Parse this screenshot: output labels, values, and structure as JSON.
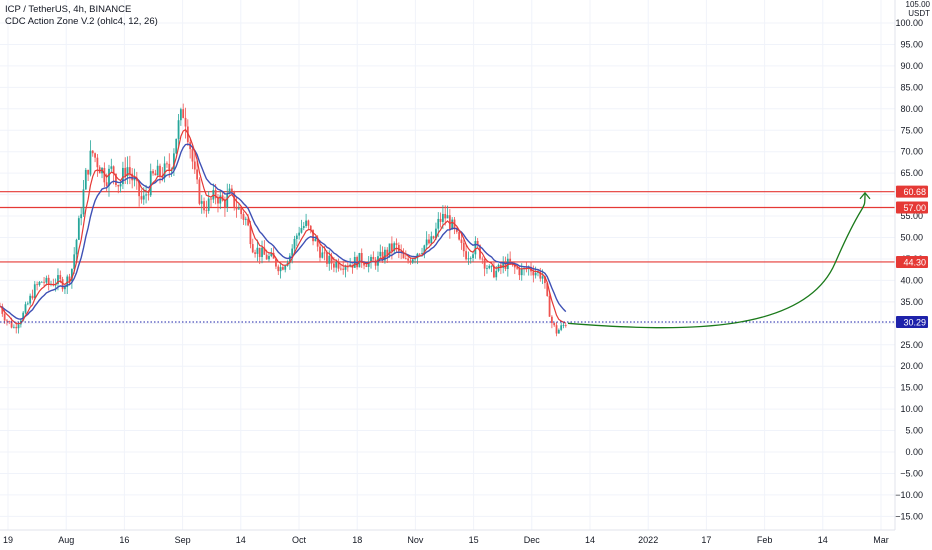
{
  "legend": {
    "symbol_line": "ICP / TetherUS, 4h, BINANCE",
    "indicator_line": "CDC Action Zone V.2 (ohlc4, 12, 26)"
  },
  "price_axis": {
    "currency_top": "105.00",
    "currency_unit": "USDT"
  },
  "colors": {
    "up": "#26a69a",
    "down": "#ef5350",
    "fast_ma": "#e53935",
    "slow_ma": "#3f51b5",
    "level_line": "#e53935",
    "current_price": "#1e22aa",
    "projection": "#1b7a1b",
    "grid": "#f0f3fa"
  },
  "chart_data": {
    "type": "candlestick",
    "y_ticks": [
      "100.00",
      "95.00",
      "90.00",
      "85.00",
      "80.00",
      "75.00",
      "70.00",
      "65.00",
      "60.00",
      "55.00",
      "50.00",
      "45.00",
      "40.00",
      "35.00",
      "30.00",
      "25.00",
      "20.00",
      "15.00",
      "10.00",
      "5.00",
      "0.00",
      "−5.00",
      "−10.00",
      "−15.00"
    ],
    "y_tick_values": [
      100,
      95,
      90,
      85,
      80,
      75,
      70,
      65,
      60,
      55,
      50,
      45,
      40,
      35,
      30,
      25,
      20,
      15,
      10,
      5,
      0,
      -5,
      -10,
      -15
    ],
    "ylim": [
      -17,
      107
    ],
    "x_ticks": [
      "19",
      "Aug",
      "16",
      "Sep",
      "14",
      "Oct",
      "18",
      "Nov",
      "15",
      "Dec",
      "14",
      "2022",
      "17",
      "Feb",
      "14",
      "Mar"
    ],
    "price_labels": [
      {
        "label": "60.68",
        "value": 60.68,
        "kind": "level"
      },
      {
        "label": "57.00",
        "value": 57.0,
        "kind": "level"
      },
      {
        "label": "44.30",
        "value": 44.3,
        "kind": "level"
      },
      {
        "label": "30.29",
        "value": 30.29,
        "kind": "current"
      }
    ],
    "price_path": [
      {
        "t": 0,
        "p": 34
      },
      {
        "t": 0.25,
        "p": 31
      },
      {
        "t": 0.6,
        "p": 29
      },
      {
        "t": 1.0,
        "p": 32
      },
      {
        "t": 1.5,
        "p": 38
      },
      {
        "t": 1.85,
        "p": 40
      },
      {
        "t": 2.1,
        "p": 39
      },
      {
        "t": 2.5,
        "p": 40
      },
      {
        "t": 2.8,
        "p": 39
      },
      {
        "t": 3.1,
        "p": 42
      },
      {
        "t": 3.4,
        "p": 52
      },
      {
        "t": 3.75,
        "p": 65
      },
      {
        "t": 4.0,
        "p": 70
      },
      {
        "t": 4.3,
        "p": 67
      },
      {
        "t": 4.6,
        "p": 64
      },
      {
        "t": 4.9,
        "p": 66
      },
      {
        "t": 5.2,
        "p": 62
      },
      {
        "t": 5.5,
        "p": 67
      },
      {
        "t": 5.8,
        "p": 63
      },
      {
        "t": 6.2,
        "p": 58
      },
      {
        "t": 6.6,
        "p": 64
      },
      {
        "t": 7.0,
        "p": 65
      },
      {
        "t": 7.4,
        "p": 66
      },
      {
        "t": 7.7,
        "p": 75
      },
      {
        "t": 8.0,
        "p": 80
      },
      {
        "t": 8.25,
        "p": 72
      },
      {
        "t": 8.5,
        "p": 63
      },
      {
        "t": 8.8,
        "p": 57
      },
      {
        "t": 9.1,
        "p": 58
      },
      {
        "t": 9.4,
        "p": 60
      },
      {
        "t": 9.7,
        "p": 58
      },
      {
        "t": 10.0,
        "p": 60
      },
      {
        "t": 10.3,
        "p": 57
      },
      {
        "t": 10.7,
        "p": 54
      },
      {
        "t": 11.0,
        "p": 48
      },
      {
        "t": 11.4,
        "p": 46
      },
      {
        "t": 11.8,
        "p": 45
      },
      {
        "t": 12.2,
        "p": 43
      },
      {
        "t": 12.6,
        "p": 46
      },
      {
        "t": 13.0,
        "p": 52
      },
      {
        "t": 13.3,
        "p": 53
      },
      {
        "t": 13.7,
        "p": 49
      },
      {
        "t": 14.1,
        "p": 45
      },
      {
        "t": 14.5,
        "p": 44
      },
      {
        "t": 14.9,
        "p": 44
      },
      {
        "t": 15.3,
        "p": 44
      },
      {
        "t": 15.7,
        "p": 45
      },
      {
        "t": 16.1,
        "p": 44
      },
      {
        "t": 16.5,
        "p": 45
      },
      {
        "t": 16.9,
        "p": 47
      },
      {
        "t": 17.2,
        "p": 48
      },
      {
        "t": 17.6,
        "p": 44
      },
      {
        "t": 18.0,
        "p": 46
      },
      {
        "t": 18.4,
        "p": 48
      },
      {
        "t": 18.8,
        "p": 49
      },
      {
        "t": 19.1,
        "p": 54
      },
      {
        "t": 19.4,
        "p": 55
      },
      {
        "t": 19.7,
        "p": 52
      },
      {
        "t": 20.0,
        "p": 48
      },
      {
        "t": 20.3,
        "p": 46
      },
      {
        "t": 20.7,
        "p": 48
      },
      {
        "t": 21.0,
        "p": 45
      },
      {
        "t": 21.3,
        "p": 42
      },
      {
        "t": 21.6,
        "p": 42
      },
      {
        "t": 22.0,
        "p": 44
      },
      {
        "t": 22.3,
        "p": 43
      },
      {
        "t": 22.7,
        "p": 42
      },
      {
        "t": 23.0,
        "p": 43
      },
      {
        "t": 23.3,
        "p": 42
      },
      {
        "t": 23.6,
        "p": 41
      },
      {
        "t": 23.8,
        "p": 35
      },
      {
        "t": 24.0,
        "p": 30
      },
      {
        "t": 24.2,
        "p": 28
      },
      {
        "t": 24.4,
        "p": 29
      },
      {
        "t": 24.6,
        "p": 30
      }
    ],
    "projection": {
      "from_value": 30.0,
      "to_value": 60.4,
      "bottom_value": 29.2
    }
  }
}
